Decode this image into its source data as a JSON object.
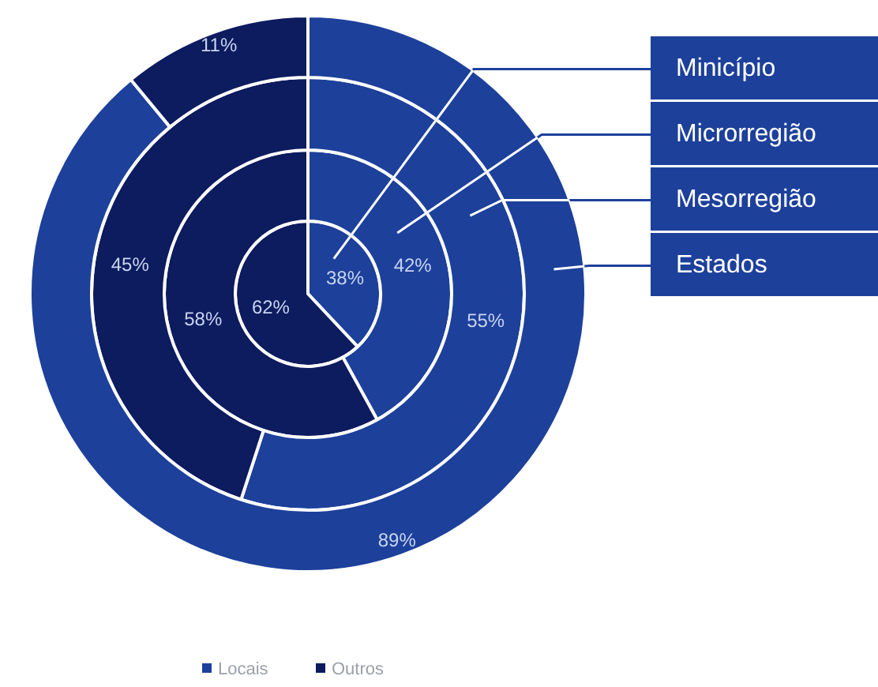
{
  "chart_data": {
    "type": "donut",
    "categories": [
      "Locais",
      "Outros"
    ],
    "colors": [
      "#1d409b",
      "#0d1b5f"
    ],
    "legend": "bottom",
    "series": [
      {
        "name": "Minicípio",
        "values": [
          38,
          62
        ],
        "value_labels": [
          "38%",
          "62%"
        ]
      },
      {
        "name": "Microrregião",
        "values": [
          42,
          58
        ],
        "value_labels": [
          "42%",
          "58%"
        ]
      },
      {
        "name": "Mesorregião",
        "values": [
          55,
          45
        ],
        "value_labels": [
          "55%",
          "45%"
        ]
      },
      {
        "name": "Estados",
        "values": [
          89,
          11
        ],
        "value_labels": [
          "89%",
          "11%"
        ]
      }
    ]
  }
}
